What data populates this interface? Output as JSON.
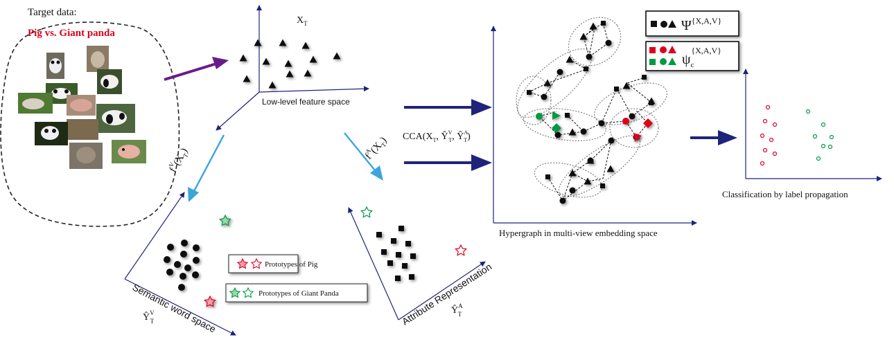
{
  "target": {
    "title": "Target data:",
    "subtitle": "Pig vs. Giant panda"
  },
  "lowlevel": {
    "var_label": "X",
    "var_sub": "T",
    "caption": "Low-level feature space"
  },
  "semantic": {
    "caption": "Semantic word space",
    "yhat": "Ŷ",
    "yhat_sup": "V",
    "yhat_sub": "T",
    "func_f": "f",
    "func_sup": "V",
    "func_arg": "(X",
    "func_sub": "T",
    "func_close": ")"
  },
  "attribute": {
    "caption": "Attribute Representation",
    "yhat": "Ŷ",
    "yhat_sup": "A",
    "yhat_sub": "T",
    "func_f": "f",
    "func_sup": "A",
    "func_arg": "(X",
    "func_sub": "T",
    "func_close": ")"
  },
  "cca": {
    "text": "CCA(X",
    "sub1": "T",
    "mid1": ", Ŷ",
    "sup2": "V",
    "sub2": "T",
    "mid2": ", Ŷ",
    "sup3": "A",
    "sub3": "T",
    "end": ")"
  },
  "legend": {
    "pig": "Prototypes of Pig",
    "panda": "Prototypes of Giant Panda"
  },
  "hypergraph": {
    "caption": "Hypergraph in multi-view embedding space",
    "psi_label": "Ψ",
    "psi_sup": "{X,A,V}",
    "psic_label": "ψ",
    "psic_sub": "c",
    "psic_sup": "{X,A,V}"
  },
  "classification": {
    "caption": "Classification by label propagation"
  },
  "colors": {
    "pig_red": "#e0001b",
    "panda_green": "#009a44",
    "arrow_navy": "#1f237a",
    "arrow_cyan": "#3aa6dc",
    "arrow_purple": "#6a1b8a",
    "axis_navy": "#1f237a"
  }
}
